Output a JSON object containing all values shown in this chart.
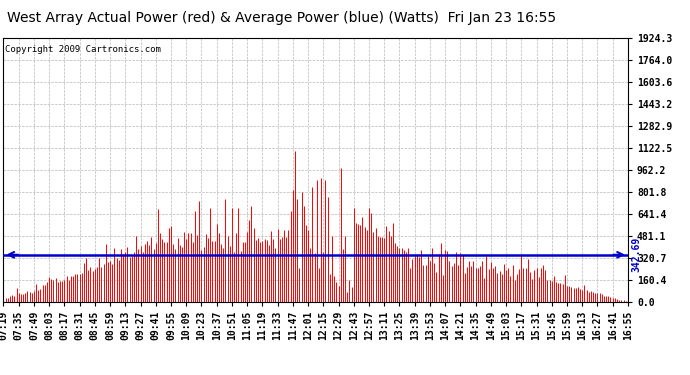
{
  "title": "West Array Actual Power (red) & Average Power (blue) (Watts)  Fri Jan 23 16:55",
  "copyright": "Copyright 2009 Cartronics.com",
  "avg_power": 342.69,
  "y_max": 1924.3,
  "y_ticks": [
    0.0,
    160.4,
    320.7,
    481.1,
    641.4,
    801.8,
    962.2,
    1122.5,
    1282.9,
    1443.2,
    1603.6,
    1764.0,
    1924.3
  ],
  "x_labels": [
    "07:19",
    "07:35",
    "07:49",
    "08:03",
    "08:17",
    "08:31",
    "08:45",
    "08:59",
    "09:13",
    "09:27",
    "09:41",
    "09:55",
    "10:09",
    "10:23",
    "10:37",
    "10:51",
    "11:05",
    "11:19",
    "11:33",
    "11:47",
    "12:01",
    "12:15",
    "12:29",
    "12:43",
    "12:57",
    "13:11",
    "13:25",
    "13:39",
    "13:53",
    "14:07",
    "14:21",
    "14:35",
    "14:49",
    "15:03",
    "15:17",
    "15:31",
    "15:45",
    "15:59",
    "16:13",
    "16:27",
    "16:41",
    "16:55"
  ],
  "background_color": "#ffffff",
  "plot_bg_color": "#ffffff",
  "grid_color": "#b0b0b0",
  "bar_color": "#ff0000",
  "avg_line_color": "#0000cc",
  "title_color": "#000000",
  "title_fontsize": 10,
  "copyright_fontsize": 6.5,
  "tick_fontsize": 7
}
